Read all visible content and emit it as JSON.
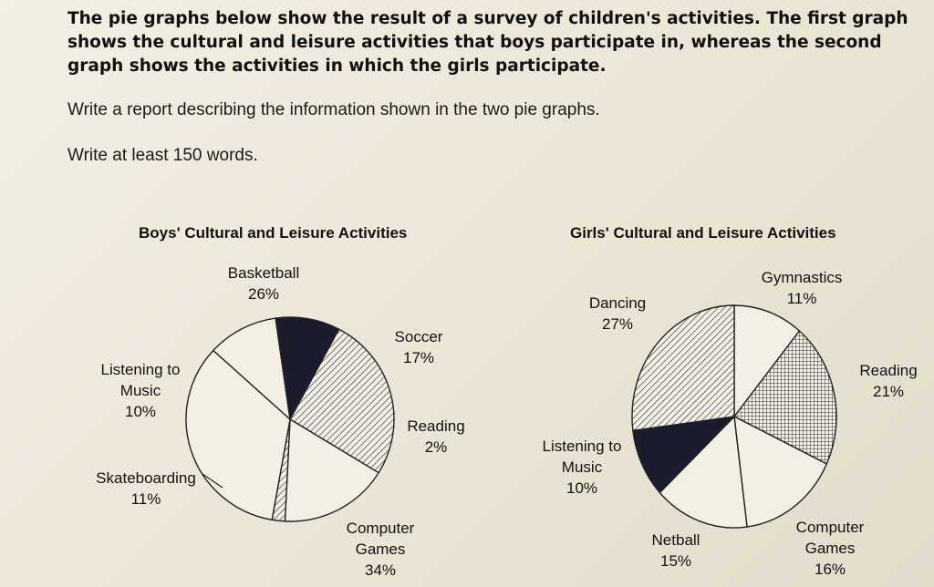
{
  "task": {
    "prompt": "The pie graphs below show the result of a survey of children's activities. The first graph shows the cultural and leisure activities that boys participate in, whereas the second graph shows the activities in which the girls participate.",
    "instruction": "Write a report describing the information shown in the two pie graphs.",
    "word_count": "Write at least 150 words."
  },
  "chart_data": [
    {
      "type": "pie",
      "title": "Boys' Cultural and Leisure Activities",
      "slices": [
        {
          "label": "Basketball",
          "value": 26,
          "fill": "hatch"
        },
        {
          "label": "Soccer",
          "value": 17,
          "fill": "none"
        },
        {
          "label": "Reading",
          "value": 2,
          "fill": "hatch"
        },
        {
          "label": "Computer Games",
          "value": 34,
          "fill": "none"
        },
        {
          "label": "Skateboarding",
          "value": 11,
          "fill": "none"
        },
        {
          "label": "Listening to Music",
          "value": 10,
          "fill": "dark"
        }
      ]
    },
    {
      "type": "pie",
      "title": "Girls' Cultural and Leisure Activities",
      "slices": [
        {
          "label": "Gymnastics",
          "value": 11,
          "fill": "none"
        },
        {
          "label": "Reading",
          "value": 21,
          "fill": "grid"
        },
        {
          "label": "Computer Games",
          "value": 16,
          "fill": "none"
        },
        {
          "label": "Netball",
          "value": 15,
          "fill": "none"
        },
        {
          "label": "Listening to Music",
          "value": 10,
          "fill": "dark"
        },
        {
          "label": "Dancing",
          "value": 27,
          "fill": "hatch"
        }
      ]
    }
  ],
  "colors": {
    "dark": "#1b1b2e",
    "stroke": "#222222",
    "background": "#f3efe4"
  },
  "labels": {
    "boys": {
      "basketball": [
        "Basketball",
        "26%"
      ],
      "soccer": [
        "Soccer",
        "17%"
      ],
      "reading": [
        "Reading",
        "2%"
      ],
      "computer_games": [
        "Computer",
        "Games",
        "34%"
      ],
      "skateboarding": [
        "Skateboarding",
        "11%"
      ],
      "listening_to_music": [
        "Listening to",
        "Music",
        "10%"
      ]
    },
    "girls": {
      "gymnastics": [
        "Gymnastics",
        "11%"
      ],
      "reading": [
        "Reading",
        "21%"
      ],
      "computer_games": [
        "Computer",
        "Games",
        "16%"
      ],
      "netball": [
        "Netball",
        "15%"
      ],
      "listening_to_music": [
        "Listening to",
        "Music",
        "10%"
      ],
      "dancing": [
        "Dancing",
        "27%"
      ]
    }
  }
}
